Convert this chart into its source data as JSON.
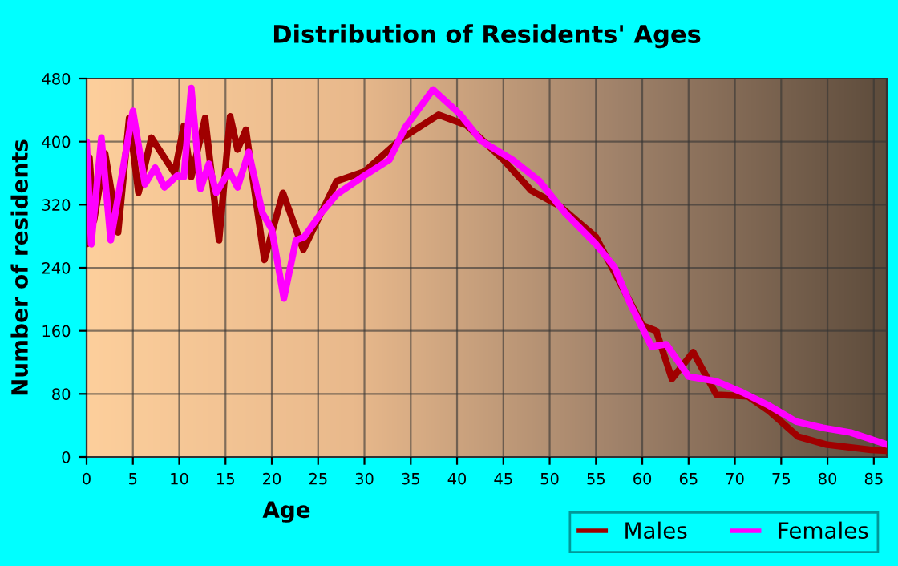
{
  "chart_data": {
    "type": "line",
    "title": "Distribution of Residents' Ages",
    "xlabel": "Age",
    "ylabel": "Number of residents",
    "xlim": [
      0,
      86.4
    ],
    "xticks": [
      0,
      5,
      10,
      15,
      20,
      25,
      30,
      35,
      40,
      45,
      50,
      55,
      60,
      65,
      70,
      75,
      80,
      85
    ],
    "ylim": [
      0,
      480
    ],
    "yticks": [
      0,
      80,
      160,
      240,
      320,
      400,
      480
    ],
    "grid": true,
    "legend": "bottom right",
    "marker": "none",
    "line_style": "solid",
    "series": [
      {
        "name": "Males",
        "color": "#a00000",
        "x": [
          0,
          0.3,
          0.8,
          2,
          3.4,
          4.6,
          5.6,
          7,
          9.5,
          10.5,
          11.3,
          12.8,
          14.3,
          15.5,
          16.3,
          17.2,
          19.2,
          21.2,
          23.4,
          27,
          30,
          34,
          38,
          41,
          45,
          48,
          51,
          55,
          60,
          61.5,
          63.2,
          65.5,
          68,
          71.4,
          73.7,
          76.8,
          79.8,
          84.7,
          86.4
        ],
        "values": [
          270,
          380,
          300,
          385,
          285,
          430,
          335,
          405,
          360,
          420,
          355,
          430,
          275,
          432,
          390,
          415,
          250,
          335,
          263,
          350,
          362,
          404,
          434,
          421,
          377,
          338,
          319,
          279,
          167,
          160,
          99,
          133,
          79,
          77,
          58,
          26,
          16,
          9,
          8
        ]
      },
      {
        "name": "Females",
        "color": "#ff00ff",
        "x": [
          0,
          0.5,
          1.6,
          2.6,
          5,
          6.3,
          7.4,
          8.4,
          9.8,
          10.5,
          11.3,
          12.3,
          13.2,
          14,
          15.4,
          16.3,
          17.5,
          19,
          20,
          21.3,
          22.6,
          23.5,
          25.3,
          27,
          30,
          32.7,
          34.4,
          37.4,
          40.3,
          42.6,
          46,
          48.9,
          51.7,
          55,
          57,
          58.7,
          61,
          62.6,
          65,
          68,
          70.8,
          73.7,
          76.6,
          79.5,
          82.5,
          86.4
        ],
        "values": [
          400,
          270,
          405,
          275,
          439,
          346,
          367,
          342,
          357,
          355,
          468,
          340,
          372,
          335,
          363,
          342,
          387,
          309,
          289,
          201,
          275,
          279,
          309,
          333,
          357,
          377,
          418,
          466,
          435,
          401,
          377,
          350,
          309,
          270,
          241,
          194,
          140,
          143,
          102,
          96,
          82,
          65,
          45,
          37,
          31,
          16
        ]
      }
    ]
  }
}
